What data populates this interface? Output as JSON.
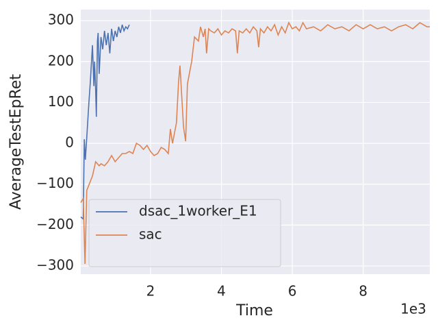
{
  "chart_data": {
    "type": "line",
    "xlabel": "Time",
    "ylabel": "AverageTestEpRet",
    "x_offset_label": "1e3",
    "xlim": [
      0.03,
      9.88
    ],
    "xticks": [
      2,
      4,
      6,
      8
    ],
    "ylim": [
      -320,
      327
    ],
    "yticks": [
      {
        "value": -300,
        "label": "−300"
      },
      {
        "value": -200,
        "label": "−200"
      },
      {
        "value": -100,
        "label": "−100"
      },
      0,
      100,
      200,
      300
    ],
    "grid": true,
    "legend": "lower left",
    "series": [
      {
        "name": "dsac_1worker_E1",
        "color": "#4c72b0",
        "x": [
          0.03,
          0.1,
          0.13,
          0.16,
          0.2,
          0.26,
          0.3,
          0.36,
          0.4,
          0.42,
          0.45,
          0.47,
          0.5,
          0.52,
          0.55,
          0.6,
          0.65,
          0.7,
          0.75,
          0.8,
          0.85,
          0.9,
          0.95,
          1.0,
          1.05,
          1.1,
          1.15,
          1.2,
          1.25,
          1.3,
          1.35,
          1.4
        ],
        "values": [
          -180,
          -185,
          10,
          -40,
          15,
          100,
          150,
          240,
          140,
          200,
          130,
          65,
          250,
          270,
          170,
          260,
          230,
          275,
          240,
          270,
          220,
          280,
          250,
          275,
          260,
          285,
          270,
          290,
          275,
          285,
          280,
          290
        ]
      },
      {
        "name": "sac",
        "color": "#dd8452",
        "x": [
          0.03,
          0.1,
          0.15,
          0.2,
          0.36,
          0.45,
          0.55,
          0.6,
          0.7,
          0.8,
          0.9,
          1.0,
          1.1,
          1.2,
          1.3,
          1.4,
          1.5,
          1.6,
          1.7,
          1.8,
          1.9,
          2.0,
          2.1,
          2.2,
          2.3,
          2.4,
          2.5,
          2.56,
          2.62,
          2.73,
          2.79,
          2.83,
          2.93,
          2.99,
          3.04,
          3.16,
          3.24,
          3.35,
          3.41,
          3.49,
          3.54,
          3.58,
          3.64,
          3.7,
          3.8,
          3.9,
          4.0,
          4.1,
          4.2,
          4.3,
          4.4,
          4.45,
          4.5,
          4.6,
          4.7,
          4.8,
          4.9,
          5.0,
          5.05,
          5.1,
          5.2,
          5.3,
          5.4,
          5.5,
          5.6,
          5.7,
          5.8,
          5.9,
          6.0,
          6.1,
          6.2,
          6.3,
          6.4,
          6.6,
          6.8,
          7.0,
          7.2,
          7.4,
          7.6,
          7.8,
          8.0,
          8.2,
          8.4,
          8.6,
          8.8,
          9.0,
          9.2,
          9.4,
          9.6,
          9.8,
          9.88
        ],
        "values": [
          -145,
          -135,
          -295,
          -115,
          -80,
          -45,
          -55,
          -50,
          -55,
          -45,
          -30,
          -45,
          -35,
          -25,
          -25,
          -20,
          -25,
          0,
          -5,
          -15,
          -5,
          -20,
          -30,
          -25,
          -10,
          -15,
          -25,
          35,
          0,
          50,
          150,
          190,
          40,
          5,
          145,
          200,
          260,
          250,
          285,
          260,
          280,
          220,
          280,
          275,
          270,
          280,
          265,
          275,
          270,
          280,
          275,
          220,
          275,
          270,
          280,
          270,
          285,
          275,
          235,
          280,
          270,
          285,
          275,
          290,
          265,
          285,
          270,
          295,
          280,
          285,
          275,
          295,
          280,
          285,
          275,
          290,
          280,
          285,
          275,
          290,
          280,
          290,
          280,
          285,
          275,
          285,
          290,
          280,
          295,
          285,
          285
        ]
      }
    ]
  }
}
